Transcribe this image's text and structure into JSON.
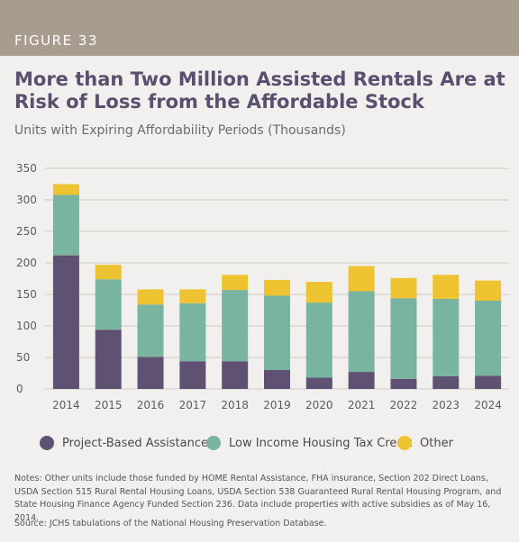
{
  "header": {
    "figure_label": "FIGURE 33",
    "band_color": "#a89c8f"
  },
  "title": "More than Two Million Assisted Rentals Are at Risk of Loss from the Affordable Stock",
  "subtitle": "Units with Expiring Affordability Periods (Thousands)",
  "chart_data": {
    "type": "bar",
    "stacked": true,
    "categories": [
      "2014",
      "2015",
      "2016",
      "2017",
      "2018",
      "2019",
      "2020",
      "2021",
      "2022",
      "2023",
      "2024"
    ],
    "series": [
      {
        "name": "Project-Based Assistance",
        "color": "#5e5171",
        "values": [
          212,
          94,
          51,
          44,
          44,
          30,
          18,
          27,
          16,
          20,
          21
        ]
      },
      {
        "name": "Low Income Housing Tax Credit",
        "color": "#78b4a0",
        "values": [
          96,
          80,
          83,
          92,
          113,
          118,
          119,
          128,
          128,
          123,
          119
        ]
      },
      {
        "name": "Other",
        "color": "#edc331",
        "values": [
          17,
          23,
          24,
          22,
          24,
          25,
          33,
          40,
          32,
          38,
          32
        ]
      }
    ],
    "ylim": [
      0,
      350
    ],
    "yticks": [
      0,
      50,
      100,
      150,
      200,
      250,
      300,
      350
    ],
    "grid": true,
    "legend_position": "bottom",
    "xlabel": "",
    "ylabel": ""
  },
  "notes": "Notes: Other units include those funded by HOME Rental Assistance, FHA insurance, Section 202 Direct Loans, USDA Section 515 Rural Rental Housing Loans, USDA Section 538 Guaranteed Rural Rental Housing Program, and State Housing Finance Agency Funded Section 236. Data include properties with active subsidies as of May 16, 2014.",
  "source": "Source: JCHS tabulations of the National Housing Preservation Database."
}
